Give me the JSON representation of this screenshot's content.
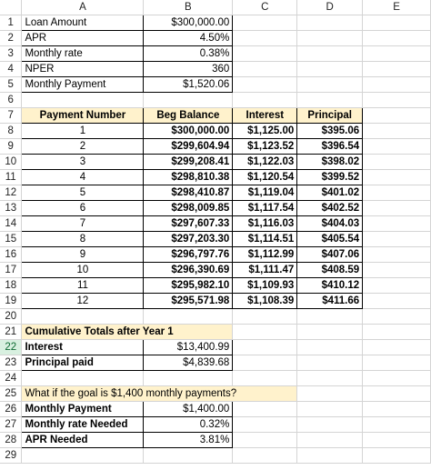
{
  "columns": [
    "A",
    "B",
    "C",
    "D",
    "E"
  ],
  "inputs": [
    {
      "row": "1",
      "label": "Loan Amount",
      "value": "$300,000.00"
    },
    {
      "row": "2",
      "label": "APR",
      "value": "4.50%"
    },
    {
      "row": "3",
      "label": "Monthly rate",
      "value": "0.38%"
    },
    {
      "row": "4",
      "label": "NPER",
      "value": "360"
    },
    {
      "row": "5",
      "label": "Monthly Payment",
      "value": "$1,520.06"
    }
  ],
  "schedule": {
    "headers": [
      "Payment Number",
      "Beg Balance",
      "Interest",
      "Principal"
    ],
    "rows": [
      {
        "row": "8",
        "n": "1",
        "bal": "$300,000.00",
        "int": "$1,125.00",
        "prin": "$395.06"
      },
      {
        "row": "9",
        "n": "2",
        "bal": "$299,604.94",
        "int": "$1,123.52",
        "prin": "$396.54"
      },
      {
        "row": "10",
        "n": "3",
        "bal": "$299,208.41",
        "int": "$1,122.03",
        "prin": "$398.02"
      },
      {
        "row": "11",
        "n": "4",
        "bal": "$298,810.38",
        "int": "$1,120.54",
        "prin": "$399.52"
      },
      {
        "row": "12",
        "n": "5",
        "bal": "$298,410.87",
        "int": "$1,119.04",
        "prin": "$401.02"
      },
      {
        "row": "13",
        "n": "6",
        "bal": "$298,009.85",
        "int": "$1,117.54",
        "prin": "$402.52"
      },
      {
        "row": "14",
        "n": "7",
        "bal": "$297,607.33",
        "int": "$1,116.03",
        "prin": "$404.03"
      },
      {
        "row": "15",
        "n": "8",
        "bal": "$297,203.30",
        "int": "$1,114.51",
        "prin": "$405.54"
      },
      {
        "row": "16",
        "n": "9",
        "bal": "$296,797.76",
        "int": "$1,112.99",
        "prin": "$407.06"
      },
      {
        "row": "17",
        "n": "10",
        "bal": "$296,390.69",
        "int": "$1,111.47",
        "prin": "$408.59"
      },
      {
        "row": "18",
        "n": "11",
        "bal": "$295,982.10",
        "int": "$1,109.93",
        "prin": "$410.12"
      },
      {
        "row": "19",
        "n": "12",
        "bal": "$295,571.98",
        "int": "$1,108.39",
        "prin": "$411.66"
      }
    ]
  },
  "cumulative": {
    "title": "Cumulative Totals after Year 1",
    "interest_label": "Interest",
    "interest_value": "$13,400.99",
    "principal_label": "Principal paid",
    "principal_value": "$4,839.68"
  },
  "whatif": {
    "title": "What if the goal is $1,400 monthly payments?",
    "payment_label": "Monthly Payment",
    "payment_value": "$1,400.00",
    "rate_label": "Monthly rate Needed",
    "rate_value": "0.32%",
    "apr_label": "APR Needed",
    "apr_value": "3.81%"
  },
  "row_numbers": {
    "r6": "6",
    "r7": "7",
    "r20": "20",
    "r21": "21",
    "r22": "22",
    "r23": "23",
    "r24": "24",
    "r25": "25",
    "r26": "26",
    "r27": "27",
    "r28": "28",
    "r29": "29"
  },
  "colors": {
    "highlight_yellow": "#fff2cc",
    "selected_header": "#d8f0e0",
    "gridline": "#d4d4d4"
  }
}
